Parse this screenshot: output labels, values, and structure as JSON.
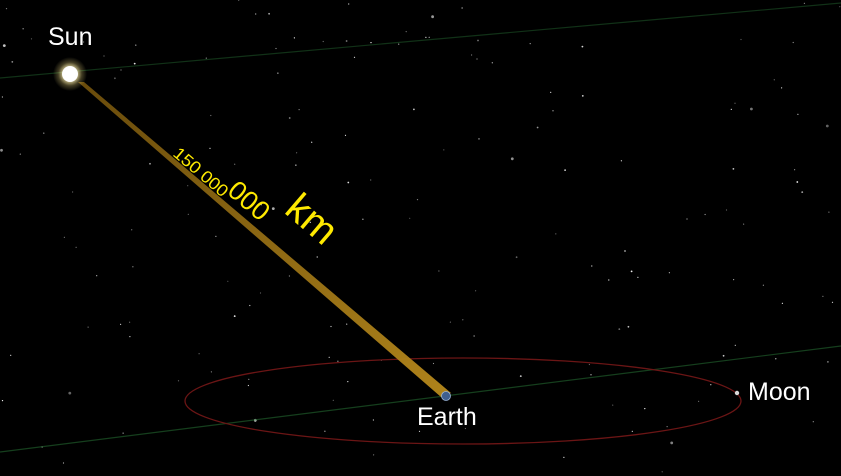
{
  "scene": {
    "background_color": "#000000",
    "bodies": {
      "sun": {
        "label": "Sun",
        "color": "#fffbe6"
      },
      "earth": {
        "label": "Earth",
        "color": "#5a7fb5"
      },
      "moon": {
        "label": "Moon",
        "color": "#d8d8d8"
      }
    },
    "distance": {
      "number": "150 000 000",
      "unit": "km",
      "beam_color": "#9c7414",
      "text_color": "#ffea00"
    },
    "orbit_color": "#6b1515",
    "ecliptic_color": "#1f5a2a"
  }
}
